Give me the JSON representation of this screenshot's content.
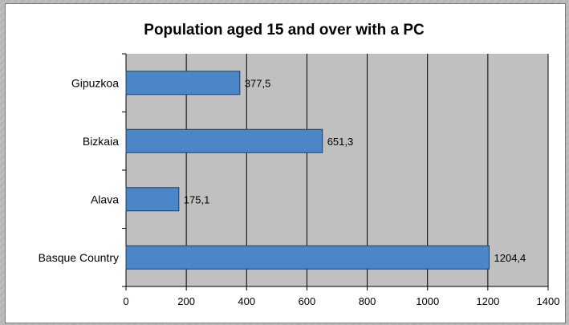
{
  "chart_data": {
    "type": "bar",
    "orientation": "horizontal",
    "title": "Population aged 15 and over with a PC",
    "xlabel": "",
    "ylabel": "",
    "categories": [
      "Gipuzkoa",
      "Bizkaia",
      "Alava",
      "Basque Country"
    ],
    "values": [
      377.5,
      651.3,
      175.1,
      1204.4
    ],
    "value_labels": [
      "377,5",
      "651,3",
      "175,1",
      "1204,4"
    ],
    "xlim": [
      0,
      1400
    ],
    "xticks": [
      0,
      200,
      400,
      600,
      800,
      1000,
      1200,
      1400
    ],
    "grid": "vertical",
    "legend": "none",
    "colors": {
      "bar": "#4a86c8",
      "bar_border": "#1e3f66",
      "plot_background": "#c0c0c0",
      "gridline": "#000000",
      "frame_background": "#b7b7b7"
    }
  }
}
